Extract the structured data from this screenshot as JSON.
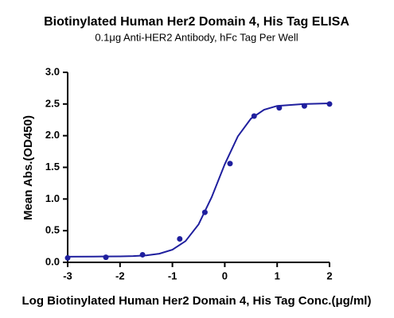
{
  "chart_data": {
    "type": "scatter",
    "title": "Biotinylated Human Her2 Domain 4, His Tag ELISA",
    "subtitle": "0.1μg Anti-HER2 Antibody, hFc Tag Per Well",
    "x_label": "Log Biotinylated Human Her2 Domain 4, His Tag Conc.(μg/ml)",
    "y_label": "Mean Abs.(OD450)",
    "color": "#1f1f9e",
    "x": [
      -3,
      -2.27,
      -1.57,
      -0.86,
      -0.38,
      0.1,
      0.56,
      1.04,
      1.52,
      2.0
    ],
    "values": [
      0.07,
      0.08,
      0.12,
      0.37,
      0.79,
      1.56,
      2.31,
      2.44,
      2.47,
      2.5
    ],
    "fit": {
      "x": [
        -3,
        -2.5,
        -2,
        -1.75,
        -1.5,
        -1.25,
        -1,
        -0.75,
        -0.5,
        -0.25,
        0,
        0.25,
        0.5,
        0.75,
        1,
        1.5,
        2
      ],
      "values": [
        0.09,
        0.091,
        0.094,
        0.099,
        0.11,
        0.137,
        0.2,
        0.335,
        0.6,
        1.03,
        1.55,
        1.99,
        2.27,
        2.41,
        2.47,
        2.5,
        2.51
      ]
    },
    "xlim": [
      -3,
      2
    ],
    "ylim": [
      0,
      3
    ],
    "xticks": [
      -3,
      -2,
      -1,
      0,
      1,
      2
    ],
    "yticks": [
      {
        "value": 0,
        "label": "0.0"
      },
      {
        "value": 0.5,
        "label": "0.5"
      },
      {
        "value": 1,
        "label": "1.0"
      },
      {
        "value": 1.5,
        "label": "1.5"
      },
      {
        "value": 2,
        "label": "2.0"
      },
      {
        "value": 2.5,
        "label": "2.5"
      },
      {
        "value": 3,
        "label": "3.0"
      }
    ]
  }
}
